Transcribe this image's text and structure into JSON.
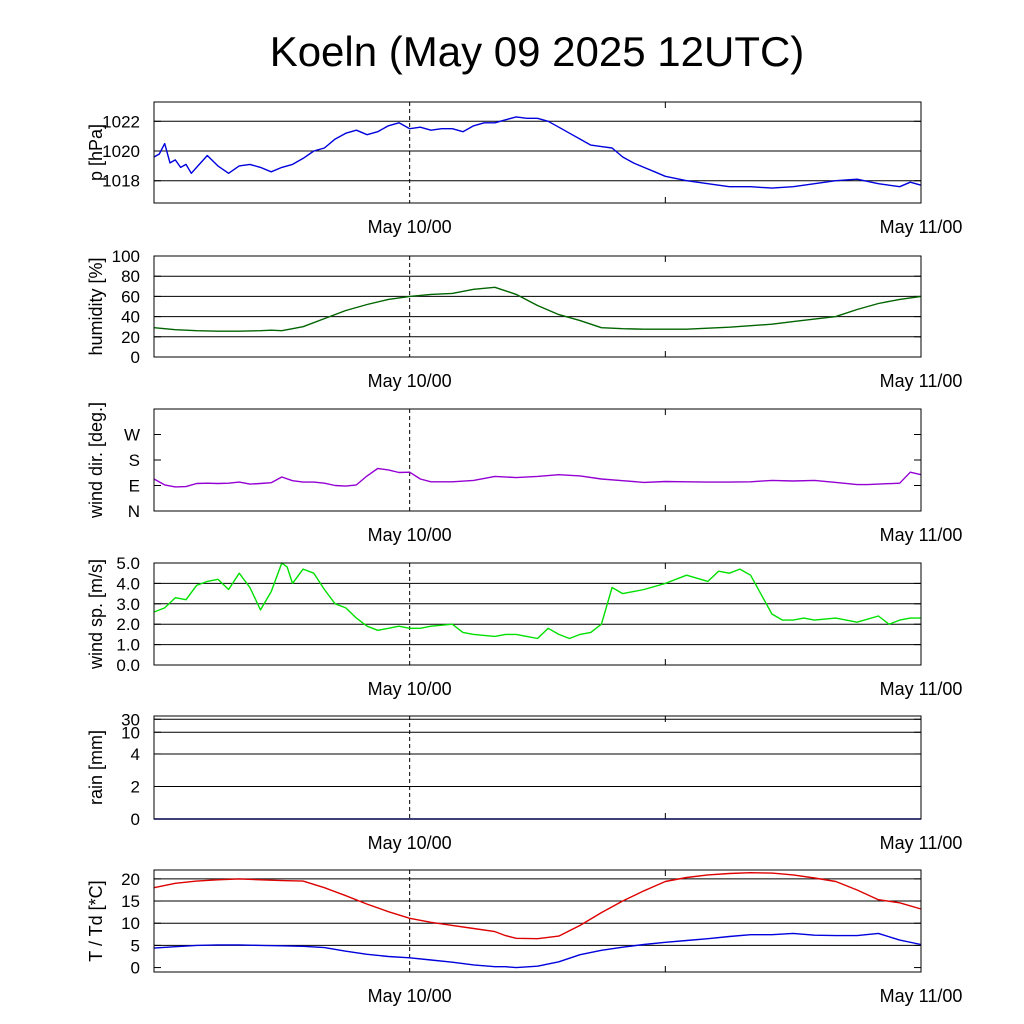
{
  "title": "Koeln (May 09 2025 12UTC)",
  "time_axis": {
    "start_hour": 0,
    "end_hour": 36,
    "midline_hour": 12,
    "tick_labels": [
      {
        "hour": 12,
        "label": "May 10/00"
      },
      {
        "hour": 36,
        "label": "May 11/00"
      }
    ],
    "minor_tick_hours": [
      24
    ]
  },
  "chart_data": [
    {
      "type": "line",
      "id": "pressure",
      "ylabel": "p [hPa]",
      "ylim": [
        1016.5,
        1023.3
      ],
      "yticks": [
        1018,
        1020,
        1022
      ],
      "tick_labels": [
        "1018",
        "1020",
        "1022"
      ],
      "gridlines": [
        1018,
        1020,
        1022
      ],
      "color": "#0000dd",
      "series": [
        {
          "x": [
            0,
            0.25,
            0.5,
            0.75,
            1,
            1.25,
            1.5,
            1.75,
            2,
            2.5,
            3,
            3.5,
            4,
            4.5,
            5,
            5.5,
            6,
            6.5,
            7,
            7.5,
            8,
            8.5,
            9,
            9.5,
            10,
            10.5,
            11,
            11.5,
            12,
            12.5,
            13,
            13.5,
            14,
            14.5,
            15,
            15.5,
            16,
            16.5,
            17,
            17.5,
            18,
            18.5,
            19,
            19.5,
            20,
            20.5,
            21,
            21.5,
            22,
            22.5,
            23,
            23.5,
            24,
            25,
            26,
            27,
            28,
            29,
            30,
            31,
            32,
            33,
            34,
            35,
            35.5,
            36
          ],
          "y": [
            1019.6,
            1019.8,
            1020.5,
            1019.2,
            1019.4,
            1018.9,
            1019.1,
            1018.5,
            1018.9,
            1019.7,
            1019.0,
            1018.5,
            1019.0,
            1019.1,
            1018.9,
            1018.6,
            1018.9,
            1019.1,
            1019.5,
            1020.0,
            1020.2,
            1020.8,
            1021.2,
            1021.4,
            1021.1,
            1021.3,
            1021.7,
            1021.9,
            1021.5,
            1021.6,
            1021.4,
            1021.5,
            1021.5,
            1021.3,
            1021.7,
            1021.9,
            1021.9,
            1022.1,
            1022.3,
            1022.2,
            1022.2,
            1022.0,
            1021.6,
            1021.2,
            1020.8,
            1020.4,
            1020.3,
            1020.2,
            1019.6,
            1019.2,
            1018.9,
            1018.6,
            1018.3,
            1018.0,
            1017.8,
            1017.6,
            1017.6,
            1017.5,
            1017.6,
            1017.8,
            1018.0,
            1018.1,
            1017.8,
            1017.6,
            1017.9,
            1017.7
          ]
        }
      ]
    },
    {
      "type": "line",
      "id": "humidity",
      "ylabel": "humidity [%]",
      "ylim": [
        0,
        100
      ],
      "yticks": [
        0,
        20,
        40,
        60,
        80,
        100
      ],
      "tick_labels": [
        "0",
        "20",
        "40",
        "60",
        "80",
        "100"
      ],
      "gridlines": [
        20,
        40,
        60,
        80
      ],
      "color": "#006400",
      "series": [
        {
          "x": [
            0,
            0.5,
            1,
            2,
            3,
            4,
            5,
            5.5,
            6,
            7,
            8,
            9,
            10,
            11,
            12,
            13,
            14,
            15,
            16,
            17,
            18,
            19,
            20,
            21,
            22,
            23,
            24,
            25,
            26,
            27,
            28,
            29,
            30,
            31,
            32,
            33,
            34,
            35,
            36
          ],
          "y": [
            29,
            28,
            27,
            26,
            25.5,
            25.5,
            26,
            26.5,
            26,
            30,
            38,
            46,
            52,
            57,
            60,
            62,
            63,
            67,
            69,
            62,
            51,
            42,
            36,
            29,
            28,
            27.5,
            27.5,
            27.5,
            28.5,
            29.5,
            31,
            32.5,
            35,
            37.5,
            40,
            47,
            53,
            57,
            60
          ]
        }
      ]
    },
    {
      "type": "line",
      "id": "wind_direction",
      "ylabel": "wind dir. [deg.]",
      "ylim": [
        0,
        360
      ],
      "yticks": [
        0,
        90,
        180,
        270
      ],
      "tick_labels": [
        "N",
        "E",
        "S",
        "W"
      ],
      "gridlines": [],
      "color": "#9400d3",
      "series": [
        {
          "x": [
            0,
            0.5,
            1,
            1.5,
            2,
            2.5,
            3,
            3.5,
            4,
            4.5,
            5,
            5.5,
            6,
            6.5,
            7,
            7.5,
            8,
            8.5,
            9,
            9.5,
            10,
            10.5,
            11,
            11.5,
            12,
            12.5,
            13,
            14,
            15,
            16,
            17,
            18,
            19,
            20,
            21,
            22,
            23,
            24,
            25,
            26,
            27,
            28,
            29,
            30,
            31,
            32,
            33,
            33.5,
            34,
            35,
            35.5,
            36
          ],
          "y": [
            113,
            92,
            85,
            86,
            97,
            98,
            97,
            98,
            102,
            95,
            97,
            100,
            120,
            107,
            102,
            102,
            98,
            90,
            88,
            92,
            124,
            150,
            145,
            136,
            137,
            113,
            103,
            103,
            108,
            122,
            118,
            122,
            128,
            124,
            113,
            107,
            101,
            104,
            103,
            102,
            102,
            103,
            108,
            106,
            108,
            101,
            93,
            93,
            95,
            98,
            137,
            128
          ]
        }
      ]
    },
    {
      "type": "line",
      "id": "wind_speed",
      "ylabel": "wind sp. [m/s]",
      "ylim": [
        0,
        5
      ],
      "yticks": [
        0,
        1,
        2,
        3,
        4,
        5
      ],
      "tick_labels": [
        "0.0",
        "1.0",
        "2.0",
        "3.0",
        "4.0",
        "5.0"
      ],
      "gridlines": [
        1,
        2,
        3,
        4,
        5
      ],
      "color": "#00e000",
      "series": [
        {
          "x": [
            0,
            0.5,
            1,
            1.5,
            2,
            2.5,
            3,
            3.5,
            4,
            4.5,
            5,
            5.5,
            6,
            6.25,
            6.5,
            7,
            7.5,
            8,
            8.5,
            9,
            9.5,
            10,
            10.5,
            11,
            11.5,
            12,
            12.5,
            13,
            14,
            14.5,
            15,
            16,
            16.5,
            17,
            17.5,
            18,
            18.5,
            19,
            19.5,
            20,
            20.5,
            21,
            21.5,
            22,
            22.5,
            23,
            24,
            25,
            26,
            26.5,
            27,
            27.5,
            28,
            29,
            29.5,
            30,
            30.5,
            31,
            32,
            33,
            34,
            34.5,
            35,
            35.5,
            36
          ],
          "y": [
            2.6,
            2.8,
            3.3,
            3.2,
            3.9,
            4.1,
            4.2,
            3.7,
            4.5,
            3.8,
            2.7,
            3.6,
            5.0,
            4.8,
            4.0,
            4.7,
            4.5,
            3.7,
            3.0,
            2.8,
            2.3,
            1.9,
            1.7,
            1.8,
            1.9,
            1.8,
            1.8,
            1.9,
            2.0,
            1.6,
            1.5,
            1.4,
            1.5,
            1.5,
            1.4,
            1.3,
            1.8,
            1.5,
            1.3,
            1.5,
            1.6,
            2.0,
            3.8,
            3.5,
            3.6,
            3.7,
            4.0,
            4.4,
            4.1,
            4.6,
            4.5,
            4.7,
            4.4,
            2.5,
            2.2,
            2.2,
            2.3,
            2.2,
            2.3,
            2.1,
            2.4,
            2.0,
            2.2,
            2.3,
            2.3
          ]
        }
      ]
    },
    {
      "type": "line",
      "id": "rain",
      "ylabel": "rain [mm]",
      "ylim": [
        0,
        32
      ],
      "yticks": [
        0,
        2,
        4,
        10,
        30
      ],
      "tick_labels": [
        "0",
        "2",
        "4",
        "10",
        "30"
      ],
      "tick_positions": [
        0,
        1.5,
        3,
        4,
        4.6
      ],
      "gridlines": [
        2,
        4,
        10,
        30
      ],
      "color": "#0000dd",
      "series": [
        {
          "x": [
            0,
            36
          ],
          "y": [
            0,
            0
          ]
        }
      ]
    },
    {
      "type": "line",
      "id": "temperature",
      "ylabel": "T / Td [*C]",
      "ylim": [
        -1,
        22
      ],
      "yticks": [
        0,
        5,
        10,
        15,
        20
      ],
      "tick_labels": [
        "0",
        "5",
        "10",
        "15",
        "20"
      ],
      "gridlines": [
        5,
        10,
        15,
        20
      ],
      "series": [
        {
          "color": "#dd0000",
          "x": [
            0,
            1,
            2,
            3,
            4,
            5,
            6,
            7,
            8,
            9,
            10,
            11,
            12,
            13,
            14,
            15,
            16,
            16.5,
            17,
            18,
            19,
            20,
            21,
            22,
            23,
            24,
            25,
            26,
            27,
            28,
            29,
            30,
            31,
            32,
            33,
            34,
            35,
            36
          ],
          "y": [
            18,
            19,
            19.5,
            19.8,
            20,
            19.8,
            19.6,
            19.5,
            18,
            16.2,
            14.3,
            12.6,
            11.1,
            10.2,
            9.5,
            8.8,
            8.1,
            7.2,
            6.6,
            6.5,
            7.1,
            9.5,
            12.4,
            15,
            17.3,
            19.4,
            20.3,
            20.9,
            21.2,
            21.4,
            21.3,
            20.9,
            20.2,
            19.4,
            17.5,
            15.3,
            14.6,
            13.2
          ]
        },
        {
          "color": "#0000dd",
          "x": [
            0,
            1,
            2,
            3,
            4,
            5,
            6,
            7,
            8,
            9,
            10,
            11,
            12,
            13,
            14,
            15,
            16,
            16.5,
            17,
            18,
            19,
            20,
            21,
            22,
            23,
            24,
            25,
            26,
            27,
            28,
            29,
            30,
            31,
            32,
            33,
            34,
            35,
            36
          ],
          "y": [
            4.4,
            4.7,
            5.0,
            5.1,
            5.1,
            5.0,
            4.9,
            4.8,
            4.5,
            3.7,
            3.0,
            2.5,
            2.2,
            1.7,
            1.2,
            0.6,
            0.2,
            0.2,
            0.0,
            0.3,
            1.3,
            2.9,
            3.9,
            4.6,
            5.2,
            5.7,
            6.1,
            6.5,
            7.0,
            7.4,
            7.4,
            7.7,
            7.3,
            7.2,
            7.2,
            7.7,
            6.2,
            5.2
          ]
        }
      ]
    }
  ]
}
